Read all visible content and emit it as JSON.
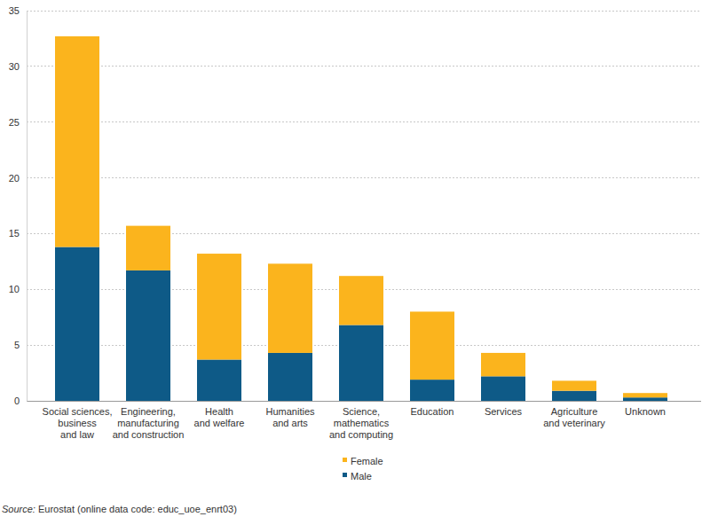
{
  "chart_data": {
    "type": "bar",
    "stacked": true,
    "grid": true,
    "legend": "bottom",
    "categories": [
      "Social sciences,\nbusiness\nand law",
      "Engineering,\nmanufacturing\nand construction",
      "Health\nand welfare",
      "Humanities\nand arts",
      "Science,\nmathematics\nand computing",
      "Education",
      "Services",
      "Agriculture\nand veterinary",
      "Unknown"
    ],
    "series": [
      {
        "name": "Male",
        "color": "#0e5a87",
        "values": [
          13.8,
          11.7,
          3.7,
          4.3,
          6.8,
          1.9,
          2.2,
          0.9,
          0.3
        ]
      },
      {
        "name": "Female",
        "color": "#fbb41d",
        "values": [
          18.9,
          4.0,
          9.5,
          8.0,
          4.4,
          6.1,
          2.1,
          0.9,
          0.4
        ]
      }
    ],
    "ylim": [
      0,
      35
    ],
    "yticks": [
      0,
      5,
      10,
      15,
      20,
      25,
      30,
      35
    ],
    "source": "Source: Eurostat (online data code: educ_uoe_enrt03)"
  }
}
